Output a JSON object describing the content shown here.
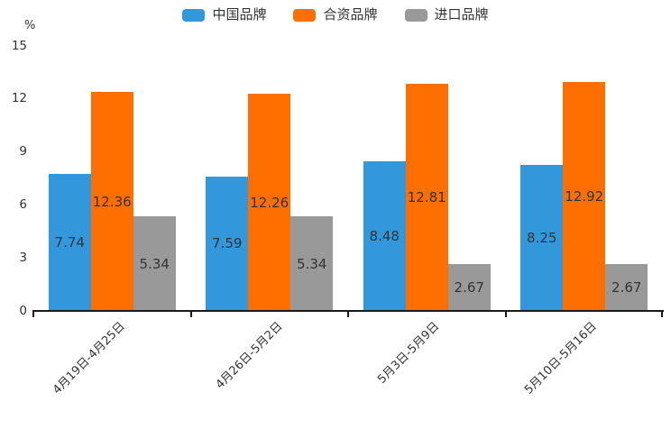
{
  "chart_data": {
    "type": "bar",
    "title": "",
    "unit_label": "%",
    "categories": [
      "4月19日-4月25日",
      "4月26日-5月2日",
      "5月3日-5月9日",
      "5月10日-5月16日"
    ],
    "series": [
      {
        "name": "中国品牌",
        "color": "#3398db",
        "values": [
          7.74,
          7.59,
          8.48,
          8.25
        ]
      },
      {
        "name": "合资品牌",
        "color": "#ff6f00",
        "values": [
          12.36,
          12.26,
          12.81,
          12.92
        ]
      },
      {
        "name": "进口品牌",
        "color": "#999999",
        "values": [
          5.34,
          5.34,
          2.67,
          2.67
        ]
      }
    ],
    "ylim": [
      0,
      15
    ],
    "yticks": [
      0,
      3,
      6,
      9,
      12,
      15
    ],
    "grid": false,
    "legend_position": "top",
    "value_labels": "inside-center",
    "x_label_rotation_deg": 45,
    "axis_color": "#1a1a1a",
    "value_label_color": "#333333"
  }
}
